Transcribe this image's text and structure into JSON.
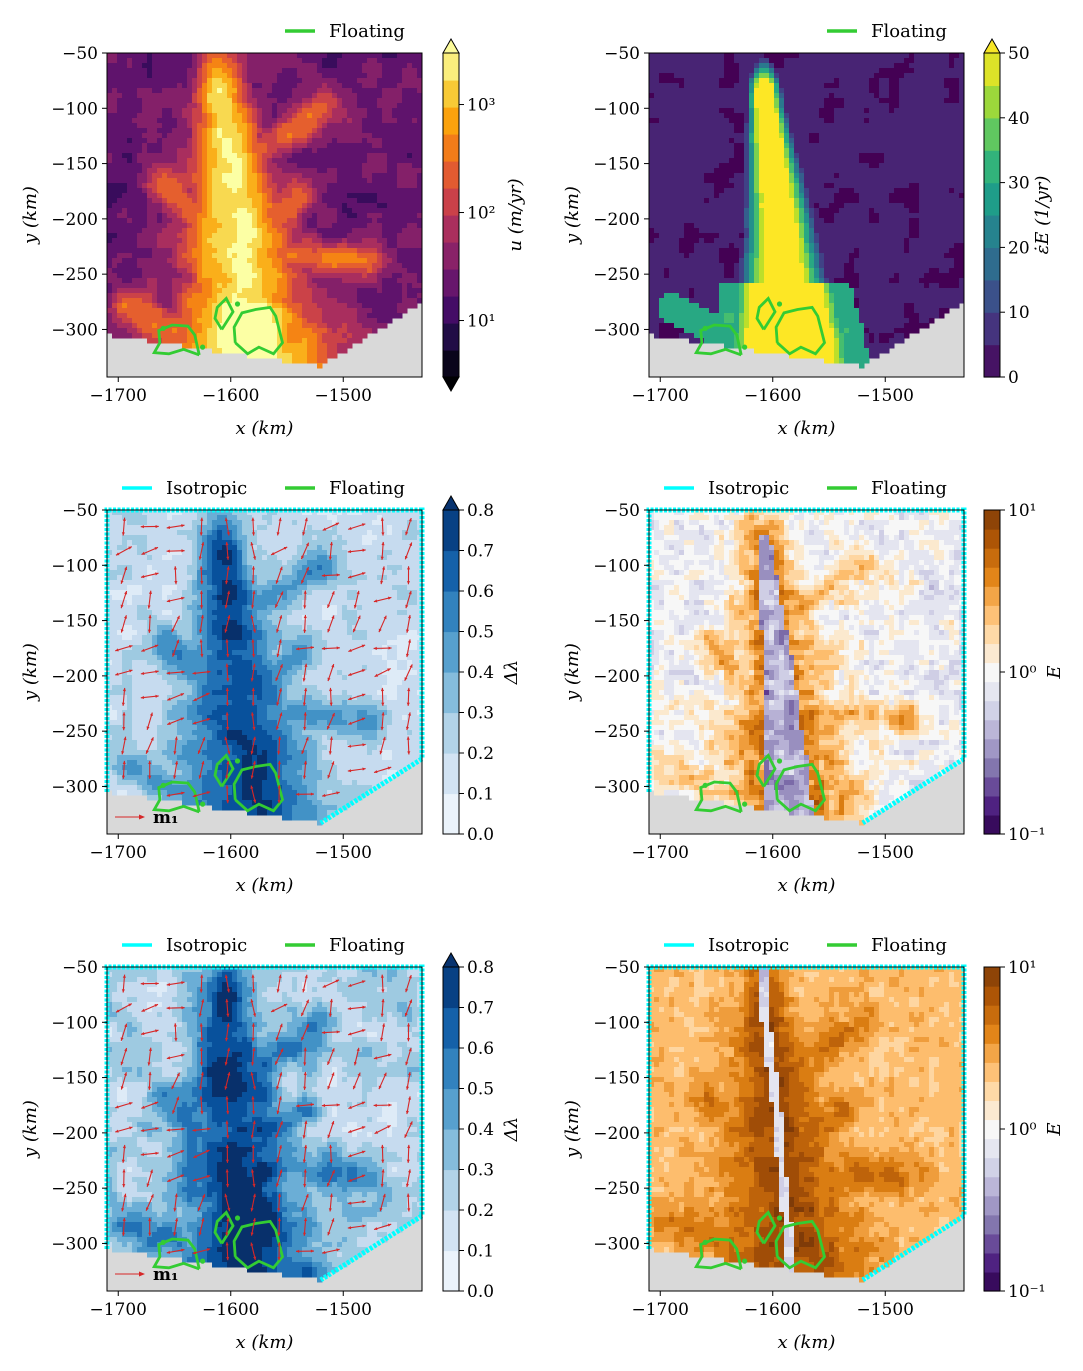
{
  "figure": {
    "legend_labels": {
      "floating": "Floating",
      "isotropic": "Isotropic"
    },
    "colors": {
      "floating": "#33cc33",
      "isotropic": "#00ffff",
      "arrows": "#d62728",
      "nodata": "#d9d9d9"
    }
  },
  "chart_data": [
    {
      "id": "velocity",
      "type": "heatmap",
      "colormap": "inferno",
      "xlabel": "x (km)",
      "ylabel": "y (km)",
      "xticks": [
        "−1700",
        "−1600",
        "−1500"
      ],
      "yticks": [
        "−50",
        "−100",
        "−150",
        "−200",
        "−250",
        "−300"
      ],
      "xlim": [
        -1710,
        -1430
      ],
      "ylim": [
        -343,
        -50
      ],
      "colorbar": {
        "label": "u (m/yr)",
        "ticks": [
          "10¹",
          "10²",
          "10³"
        ],
        "scale": "log",
        "range": [
          3,
          3000
        ]
      },
      "legend": [
        "Floating"
      ],
      "arrow_label": ""
    },
    {
      "id": "strain_rate",
      "type": "heatmap",
      "colormap": "viridis",
      "xlabel": "x (km)",
      "ylabel": "y (km)",
      "xticks": [
        "−1700",
        "−1600",
        "−1500"
      ],
      "yticks": [
        "−50",
        "−100",
        "−150",
        "−200",
        "−250",
        "−300"
      ],
      "xlim": [
        -1710,
        -1430
      ],
      "ylim": [
        -343,
        -50
      ],
      "colorbar": {
        "label": "ε̇E (1/yr)",
        "ticks": [
          "0",
          "10",
          "20",
          "30",
          "40",
          "50"
        ],
        "range": [
          0,
          50
        ]
      },
      "legend": [
        "Floating"
      ],
      "arrow_label": ""
    },
    {
      "id": "fabric_1",
      "type": "heatmap",
      "colormap": "blues",
      "xlabel": "x (km)",
      "ylabel": "y (km)",
      "xticks": [
        "−1700",
        "−1600",
        "−1500"
      ],
      "yticks": [
        "−50",
        "−100",
        "−150",
        "−200",
        "−250",
        "−300"
      ],
      "xlim": [
        -1710,
        -1430
      ],
      "ylim": [
        -343,
        -50
      ],
      "colorbar": {
        "label": "Δλ",
        "ticks": [
          "0.0",
          "0.1",
          "0.2",
          "0.3",
          "0.4",
          "0.5",
          "0.6",
          "0.7",
          "0.8"
        ],
        "range": [
          0,
          0.8
        ]
      },
      "legend": [
        "Isotropic",
        "Floating"
      ],
      "arrow_label": "m₁"
    },
    {
      "id": "enhancement_1",
      "type": "heatmap",
      "colormap": "puor",
      "xlabel": "x (km)",
      "ylabel": "y (km)",
      "xticks": [
        "−1700",
        "−1600",
        "−1500"
      ],
      "yticks": [
        "−50",
        "−100",
        "−150",
        "−200",
        "−250",
        "−300"
      ],
      "xlim": [
        -1710,
        -1430
      ],
      "ylim": [
        -343,
        -50
      ],
      "colorbar": {
        "label": "E",
        "ticks": [
          "10⁻¹",
          "10⁰",
          "10¹"
        ],
        "scale": "log",
        "range": [
          0.1,
          10
        ]
      },
      "legend": [
        "Isotropic",
        "Floating"
      ],
      "arrow_label": ""
    },
    {
      "id": "fabric_2",
      "type": "heatmap",
      "colormap": "blues",
      "xlabel": "x (km)",
      "ylabel": "y (km)",
      "xticks": [
        "−1700",
        "−1600",
        "−1500"
      ],
      "yticks": [
        "−50",
        "−100",
        "−150",
        "−200",
        "−250",
        "−300"
      ],
      "xlim": [
        -1710,
        -1430
      ],
      "ylim": [
        -343,
        -50
      ],
      "colorbar": {
        "label": "Δλ",
        "ticks": [
          "0.0",
          "0.1",
          "0.2",
          "0.3",
          "0.4",
          "0.5",
          "0.6",
          "0.7",
          "0.8"
        ],
        "range": [
          0,
          0.8
        ]
      },
      "legend": [
        "Isotropic",
        "Floating"
      ],
      "arrow_label": "m₁"
    },
    {
      "id": "enhancement_2",
      "type": "heatmap",
      "colormap": "puor",
      "xlabel": "x (km)",
      "ylabel": "y (km)",
      "xticks": [
        "−1700",
        "−1600",
        "−1500"
      ],
      "yticks": [
        "−50",
        "−100",
        "−150",
        "−200",
        "−250",
        "−300"
      ],
      "xlim": [
        -1710,
        -1430
      ],
      "ylim": [
        -343,
        -50
      ],
      "colorbar": {
        "label": "E",
        "ticks": [
          "10⁻¹",
          "10⁰",
          "10¹"
        ],
        "scale": "log",
        "range": [
          0.1,
          10
        ]
      },
      "legend": [
        "Isotropic",
        "Floating"
      ],
      "arrow_label": ""
    }
  ]
}
